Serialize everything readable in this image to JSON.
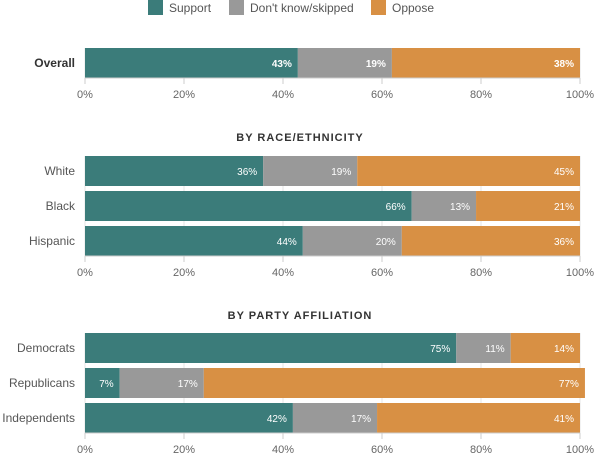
{
  "chart_data": {
    "type": "bar",
    "orientation": "horizontal",
    "stacked": true,
    "xlim": [
      0,
      100
    ],
    "x_ticks": [
      "0%",
      "20%",
      "40%",
      "60%",
      "80%",
      "100%"
    ],
    "x_tick_values": [
      0,
      20,
      40,
      60,
      80,
      100
    ],
    "grid": true,
    "legend": {
      "placement": "top-center",
      "entries": [
        {
          "name": "Support",
          "color": "#3b7c7a"
        },
        {
          "name": "Don't know/skipped",
          "color": "#999999"
        },
        {
          "name": "Oppose",
          "color": "#d89044"
        }
      ]
    },
    "series_names": [
      "Support",
      "Don't know/skipped",
      "Oppose"
    ],
    "colors": [
      "#3b7c7a",
      "#999999",
      "#d89044"
    ],
    "groups": [
      {
        "title": "",
        "rows": [
          {
            "label": "Overall",
            "values": [
              43,
              19,
              38
            ],
            "value_labels": [
              "43%",
              "19%",
              "38%"
            ],
            "bold": true
          }
        ]
      },
      {
        "title": "BY RACE/ETHNICITY",
        "rows": [
          {
            "label": "White",
            "values": [
              36,
              19,
              45
            ],
            "value_labels": [
              "36%",
              "19%",
              "45%"
            ]
          },
          {
            "label": "Black",
            "values": [
              66,
              13,
              21
            ],
            "value_labels": [
              "66%",
              "13%",
              "21%"
            ]
          },
          {
            "label": "Hispanic",
            "values": [
              44,
              20,
              36
            ],
            "value_labels": [
              "44%",
              "20%",
              "36%"
            ]
          }
        ]
      },
      {
        "title": "BY PARTY AFFILIATION",
        "rows": [
          {
            "label": "Democrats",
            "values": [
              75,
              11,
              14
            ],
            "value_labels": [
              "75%",
              "11%",
              "14%"
            ]
          },
          {
            "label": "Republicans",
            "values": [
              7,
              17,
              77
            ],
            "value_labels": [
              "7%",
              "17%",
              "77%"
            ]
          },
          {
            "label": "Independents",
            "values": [
              42,
              17,
              41
            ],
            "value_labels": [
              "42%",
              "17%",
              "41%"
            ]
          }
        ]
      }
    ]
  }
}
